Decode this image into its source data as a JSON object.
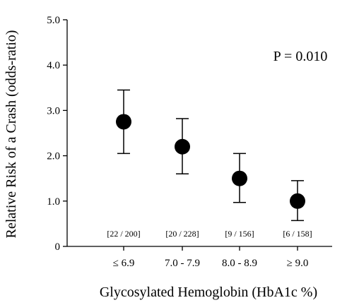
{
  "chart_data": {
    "type": "scatter",
    "title": "",
    "annotation": "P = 0.010",
    "xlabel": "Glycosylated Hemoglobin (HbA1c %)",
    "ylabel": "Relative Risk of a Crash (odds-ratio)",
    "categories": [
      "≤ 6.9",
      "7.0 - 7.9",
      "8.0 - 8.9",
      "≥ 9.0"
    ],
    "values": [
      2.75,
      2.2,
      1.5,
      1.0
    ],
    "error_low": [
      2.05,
      1.6,
      0.97,
      0.57
    ],
    "error_high": [
      3.45,
      2.82,
      2.05,
      1.45
    ],
    "counts": [
      "[22 / 200]",
      "[20 / 228]",
      "[9 / 156]",
      "[6 / 158]"
    ],
    "ylim": [
      0,
      5
    ],
    "yticks": [
      "0",
      "1.0",
      "2.0",
      "3.0",
      "4.0",
      "5.0"
    ],
    "grid": false
  }
}
